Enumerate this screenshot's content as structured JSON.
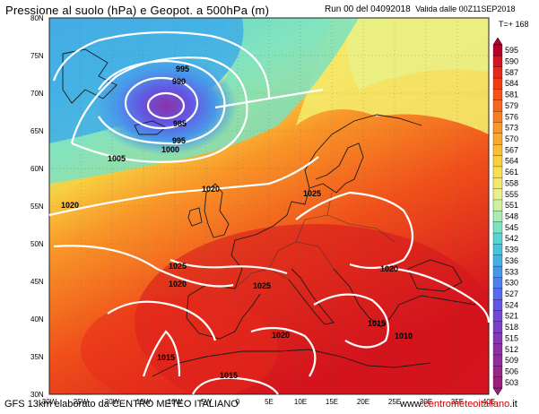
{
  "header": {
    "title": "Pressione al suolo (hPa) e Geopot. a 500hPa (m)",
    "run": "Run 00 del 04092018",
    "valid": "Valida dalle 00Z11SEP2018"
  },
  "forecast_step": "T=+ 168",
  "axes": {
    "lat_labels": [
      "80N",
      "75N",
      "70N",
      "65N",
      "60N",
      "55N",
      "50N",
      "45N",
      "40N",
      "35N",
      "30N"
    ],
    "lon_labels": [
      "30W",
      "25W",
      "20W",
      "15W",
      "10W",
      "5W",
      "0",
      "5E",
      "10E",
      "15E",
      "20E",
      "25E",
      "30E",
      "35E",
      "40E"
    ]
  },
  "colorbar": {
    "values": [
      "595",
      "590",
      "587",
      "584",
      "581",
      "579",
      "576",
      "573",
      "570",
      "567",
      "564",
      "561",
      "558",
      "555",
      "551",
      "548",
      "545",
      "542",
      "539",
      "536",
      "533",
      "530",
      "527",
      "524",
      "521",
      "518",
      "515",
      "512",
      "509",
      "506",
      "503"
    ],
    "colors": [
      "#b4002a",
      "#d4141e",
      "#e8281a",
      "#f03c14",
      "#f4541a",
      "#f6681e",
      "#f87c22",
      "#f89628",
      "#f8aa30",
      "#f8be38",
      "#f8d040",
      "#f8e050",
      "#f4ea6a",
      "#e8f088",
      "#d0f0a0",
      "#a8ecb4",
      "#7ce2c0",
      "#5ad4d0",
      "#48c4dc",
      "#44b0e4",
      "#4898ea",
      "#5080ec",
      "#5a6aec",
      "#6456e2",
      "#7048d4",
      "#7c40c4",
      "#8438b4",
      "#8c32a6",
      "#922c98",
      "#982688",
      "#9c207a"
    ]
  },
  "isobars": [
    "995",
    "990",
    "985",
    "995",
    "1000",
    "1005",
    "1020",
    "1020",
    "1025",
    "1025",
    "1020",
    "1025",
    "1020",
    "1015",
    "1020",
    "1015",
    "1010",
    "1015"
  ],
  "footer": {
    "credit": "GFS 13km elaborato da CENTRO METEO ITALIANO",
    "site_prefix": "www.",
    "site_name": "centrometeoitaliano",
    "site_suffix": ".it"
  }
}
